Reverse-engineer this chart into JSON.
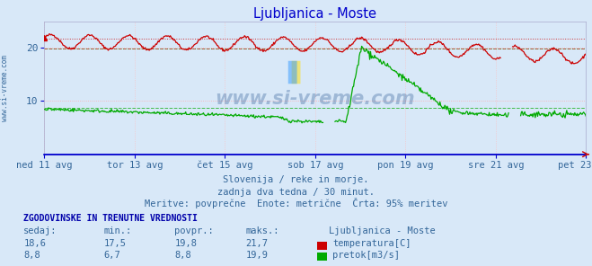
{
  "title": "Ljubljanica - Moste",
  "title_color": "#0000cc",
  "bg_color": "#d8e8f8",
  "plot_bg_color": "#d8e8f8",
  "x_labels": [
    "ned 11 avg",
    "tor 13 avg",
    "čet 15 avg",
    "sob 17 avg",
    "pon 19 avg",
    "sre 21 avg",
    "pet 23 avg"
  ],
  "x_label_color": "#336699",
  "y_ticks": [
    10,
    20
  ],
  "y_max": 25,
  "y_min": 0,
  "subtitle1": "Slovenija / reke in morje.",
  "subtitle2": "zadnja dva tedna / 30 minut.",
  "subtitle3": "Meritve: povprečne  Enote: metrične  Črta: 95% meritev",
  "subtitle_color": "#336699",
  "watermark": "www.si-vreme.com",
  "temp_color": "#cc0000",
  "flow_color": "#00aa00",
  "temp_avg_line": 19.8,
  "flow_avg_line": 8.8,
  "temp_max_line": 21.7,
  "flow_max_line": 19.9,
  "legend_title": "Ljubljanica - Moste",
  "stats_label1": "temperatura[C]",
  "stats_label2": "pretok[m3/s]",
  "sedaj1": "18,6",
  "min1": "17,5",
  "povpr1": "19,8",
  "maks1": "21,7",
  "sedaj2": "8,8",
  "min2": "6,7",
  "povpr2": "8,8",
  "maks2": "19,9",
  "sidebar_text": "www.si-vreme.com",
  "sidebar_color": "#336699"
}
